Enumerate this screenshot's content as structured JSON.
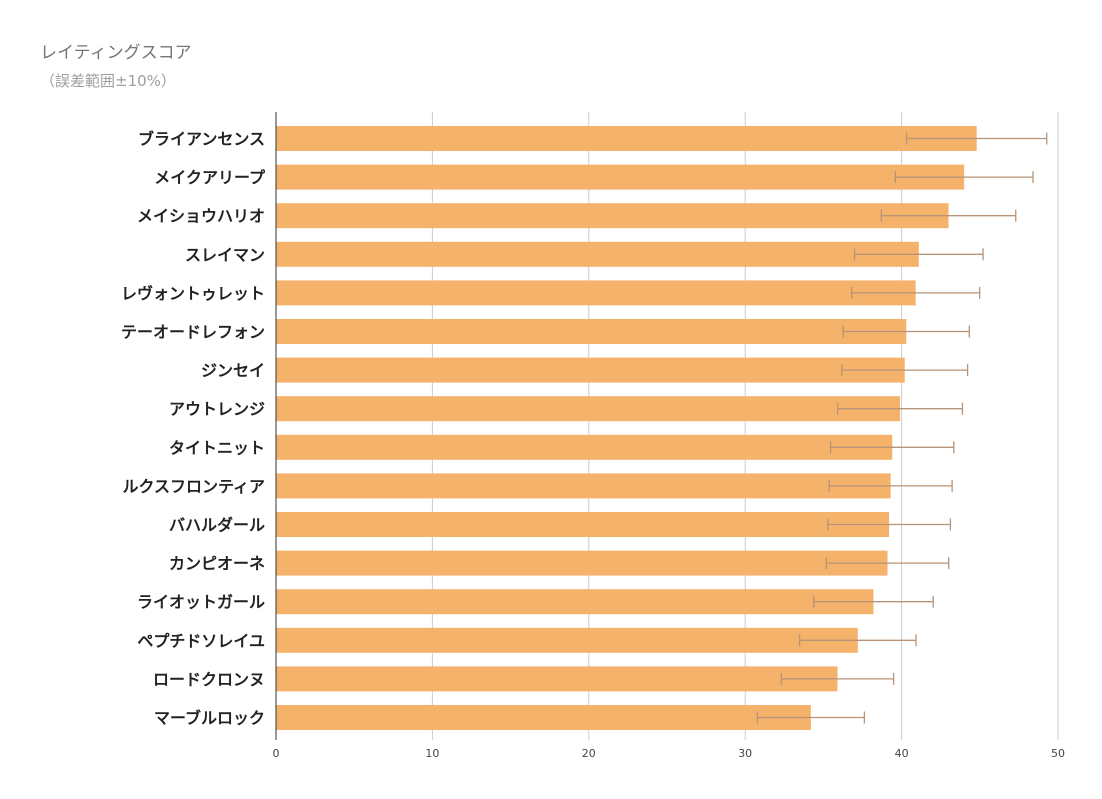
{
  "title": "レイティングスコア",
  "subtitle": "（誤差範囲±10%）",
  "colors": {
    "bar": "#f5b26b",
    "error": "#b79478",
    "grid": "#cccccc",
    "axis": "#333333"
  },
  "chart_data": {
    "type": "bar",
    "orientation": "horizontal",
    "title": "レイティングスコア",
    "subtitle": "（誤差範囲±10%）",
    "categories": [
      "ブライアンセンス",
      "メイクアリープ",
      "メイショウハリオ",
      "スレイマン",
      "レヴォントゥレット",
      "テーオードレフォン",
      "ジンセイ",
      "アウトレンジ",
      "タイトニット",
      "ルクスフロンティア",
      "バハルダール",
      "カンピオーネ",
      "ライオットガール",
      "ペプチドソレイユ",
      "ロードクロンヌ",
      "マーブルロック"
    ],
    "values": [
      44.8,
      44.0,
      43.0,
      41.1,
      40.9,
      40.3,
      40.2,
      39.9,
      39.4,
      39.3,
      39.2,
      39.1,
      38.2,
      37.2,
      35.9,
      34.2
    ],
    "error_percent": 10,
    "xlim": [
      0,
      50
    ],
    "xticks": [
      0,
      10,
      20,
      30,
      40,
      50
    ],
    "grid": true,
    "xlabel": "",
    "ylabel": ""
  }
}
